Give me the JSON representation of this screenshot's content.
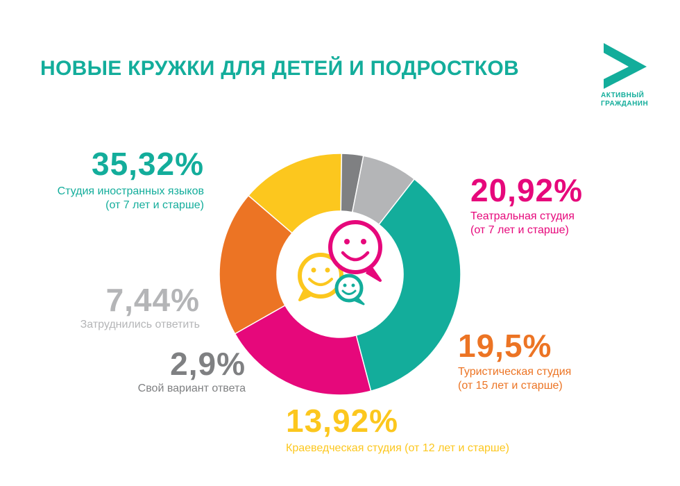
{
  "title": "НОВЫЕ КРУЖКИ ДЛЯ ДЕТЕЙ И ПОДРОСТКОВ",
  "logo": {
    "line1": "АКТИВНЫЙ",
    "line2": "ГРАЖДАНИН",
    "icon": "letter-a-logo-icon"
  },
  "center_icon": "smiley-speech-bubbles-icon",
  "colors": {
    "title": "#13ad9b",
    "teal": "#13ad9b",
    "magenta": "#e6087b",
    "orange": "#ec7424",
    "yellow": "#fcc71e",
    "darkgray": "#7f8082",
    "lightgray": "#b4b5b7"
  },
  "chart_data": {
    "type": "pie",
    "variant": "donut",
    "slices": [
      {
        "value": 35.32,
        "label": "35,32%",
        "desc1": "Студия иностранных языков",
        "desc2": "(от 7 лет и старше)",
        "color": "#13ad9b"
      },
      {
        "value": 20.92,
        "label": "20,92%",
        "desc1": "Театральная студия",
        "desc2": "(от 7 лет и старше)",
        "color": "#e6087b"
      },
      {
        "value": 19.5,
        "label": "19,5%",
        "desc1": "Туристическая студия",
        "desc2": "(от 15 лет и старше)",
        "color": "#ec7424"
      },
      {
        "value": 13.92,
        "label": "13,92%",
        "desc1": "Краеведческая студия (от 12 лет и старше)",
        "desc2": "",
        "color": "#fcc71e"
      },
      {
        "value": 2.9,
        "label": "2,9%",
        "desc1": "Свой вариант ответа",
        "desc2": "",
        "color": "#7f8082"
      },
      {
        "value": 7.44,
        "label": "7,44%",
        "desc1": "Затруднились ответить",
        "desc2": "",
        "color": "#b4b5b7"
      }
    ]
  }
}
